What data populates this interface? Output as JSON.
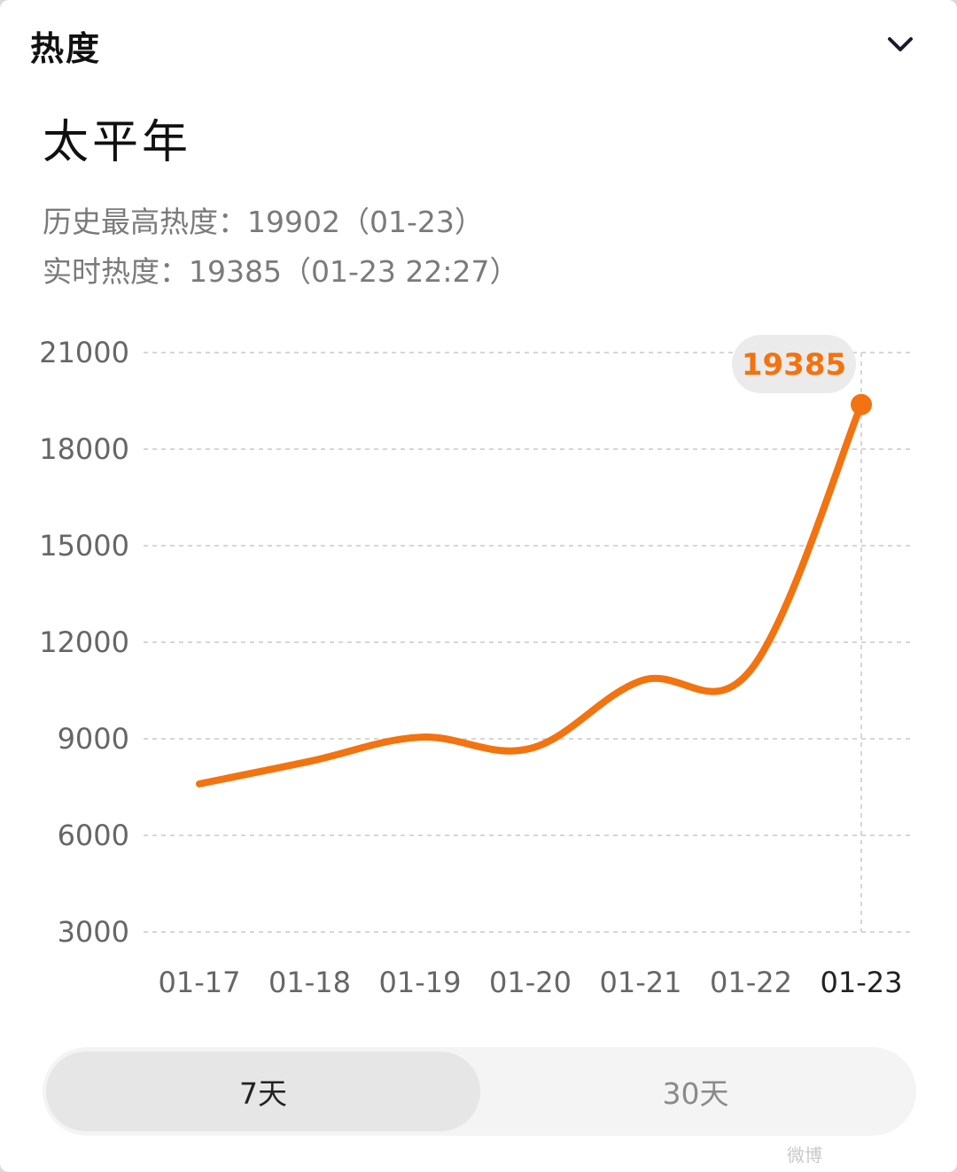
{
  "header": {
    "title": "热度",
    "collapse_icon": "chevron-down-icon"
  },
  "topic": {
    "name": "太平年"
  },
  "stats": {
    "peak_line": "历史最高热度：19902（01-23）",
    "realtime_line": "实时热度：19385（01-23 22:27）"
  },
  "colors": {
    "accent": "#f2730f",
    "grid": "#d6d6d6",
    "tab_active_bg": "#e6e6e6",
    "tab_bg": "#f4f4f4"
  },
  "chart_data": {
    "type": "line",
    "categories": [
      "01-17",
      "01-18",
      "01-19",
      "01-20",
      "01-21",
      "01-22",
      "01-23"
    ],
    "y_ticks": [
      "21000",
      "18000",
      "15000",
      "12000",
      "9000",
      "6000",
      "3000"
    ],
    "ylim": [
      3000,
      21000
    ],
    "series": [
      {
        "points": [
          {
            "x": "01-17",
            "y": 7600
          },
          {
            "x": "01-18",
            "y": 8300
          },
          {
            "x": "01-19",
            "y": 9050
          },
          {
            "x": "01-20",
            "y": 8700
          },
          {
            "x": "01-21",
            "y": 10800
          },
          {
            "x": "01-22",
            "y": 11150
          },
          {
            "x": "01-23",
            "y": 19385
          }
        ]
      }
    ],
    "highlight": {
      "x": "01-23",
      "label": "19385"
    },
    "grid": "dashed horizontal",
    "legend": "none"
  },
  "tabs": {
    "items": [
      {
        "label": "7天",
        "active": true
      },
      {
        "label": "30天",
        "active": false
      }
    ]
  },
  "watermark": {
    "text": "微博"
  }
}
